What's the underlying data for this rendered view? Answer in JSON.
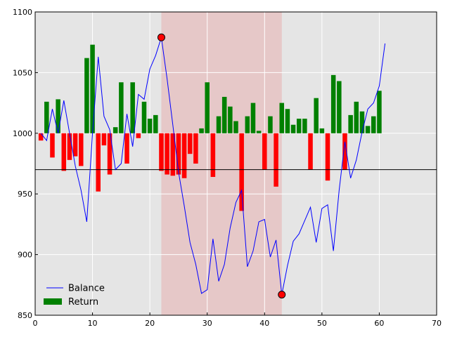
{
  "chart_data": {
    "type": "bar+line",
    "xlim": [
      0,
      70
    ],
    "ylim": [
      850,
      1100
    ],
    "xticks": [
      "0",
      "10",
      "20",
      "30",
      "40",
      "50",
      "60",
      "70"
    ],
    "yticks": [
      "850",
      "900",
      "950",
      "1000",
      "1050",
      "1100"
    ],
    "grid": true,
    "legend_position": "lower-left",
    "bar_baseline": 1000,
    "reference_line": 970,
    "highlight_span": [
      22,
      43
    ],
    "extreme_points": [
      {
        "x": 22,
        "y": 1079
      },
      {
        "x": 43,
        "y": 867
      }
    ],
    "colors": {
      "balance": "#0000ff",
      "positive": "#008000",
      "negative": "#ff0000",
      "highlight": "#e8a0a0",
      "background": "#e5e5e5",
      "marker": "#ff0000"
    },
    "series": [
      {
        "name": "Balance",
        "type": "line",
        "x": [
          1,
          2,
          3,
          4,
          5,
          6,
          7,
          8,
          9,
          10,
          11,
          12,
          13,
          14,
          15,
          16,
          17,
          18,
          19,
          20,
          21,
          22,
          23,
          24,
          25,
          26,
          27,
          28,
          29,
          30,
          31,
          32,
          33,
          34,
          35,
          36,
          37,
          38,
          39,
          40,
          41,
          42,
          43,
          44,
          45,
          46,
          47,
          48,
          49,
          50,
          51,
          52,
          53,
          54,
          55,
          56,
          57,
          58,
          59,
          60,
          61
        ],
        "y": [
          1000,
          994,
          1020,
          1000,
          1027,
          1000,
          973,
          953,
          927,
          1000,
          1063,
          1014,
          1003,
          970,
          975,
          1016,
          989,
          1032,
          1028,
          1053,
          1064,
          1079,
          1045,
          1007,
          968,
          940,
          910,
          892,
          868,
          871,
          913,
          878,
          892,
          922,
          943,
          953,
          890,
          903,
          927,
          929,
          898,
          912,
          867,
          891,
          911,
          917,
          928,
          939,
          910,
          938,
          941,
          903,
          953,
          993,
          963,
          978,
          1001,
          1020,
          1025,
          1039,
          1074
        ]
      },
      {
        "name": "Return",
        "type": "bar",
        "x": [
          1,
          2,
          3,
          4,
          5,
          6,
          7,
          8,
          9,
          10,
          11,
          12,
          13,
          14,
          15,
          16,
          17,
          18,
          19,
          20,
          21,
          22,
          23,
          24,
          25,
          26,
          27,
          28,
          29,
          30,
          31,
          32,
          33,
          34,
          35,
          36,
          37,
          38,
          39,
          40,
          41,
          42,
          43,
          44,
          45,
          46,
          47,
          48,
          49,
          50,
          51,
          52,
          53,
          54,
          55,
          56,
          57,
          58,
          59,
          60,
          61
        ],
        "values": [
          -6,
          26,
          -20,
          28,
          -31,
          -22,
          -19,
          -27,
          62,
          73,
          -48,
          -10,
          -34,
          5,
          42,
          -25,
          42,
          -4,
          26,
          12,
          15,
          -31,
          -34,
          -35,
          -34,
          -37,
          -17,
          -25,
          4,
          42,
          -36,
          14,
          30,
          22,
          10,
          -64,
          14,
          25,
          2,
          -30,
          14,
          -44,
          25,
          20,
          7,
          12,
          12,
          -30,
          29,
          4,
          -39,
          48,
          43,
          -30,
          15,
          26,
          18,
          6,
          14,
          35,
          0
        ]
      }
    ]
  }
}
